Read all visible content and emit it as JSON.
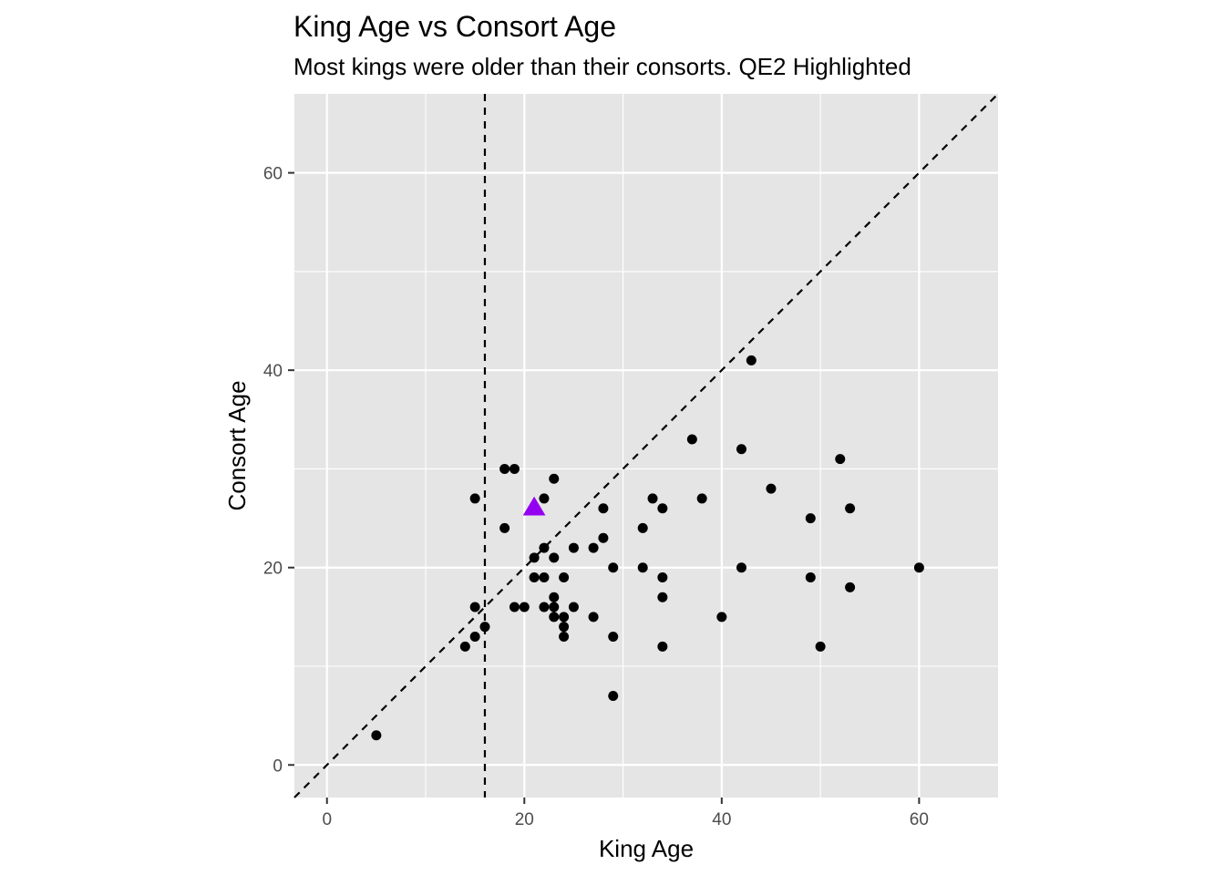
{
  "chart_data": {
    "type": "scatter",
    "title": "King Age vs Consort Age",
    "subtitle": "Most kings were older than their consorts. QE2 Highlighted",
    "xlabel": "King Age",
    "ylabel": "Consort Age",
    "xlim": [
      -3.3,
      68
    ],
    "ylim": [
      -3.3,
      68
    ],
    "x_ticks": [
      0,
      20,
      40,
      60
    ],
    "y_ticks": [
      0,
      20,
      40,
      60
    ],
    "x_minor": [
      10,
      30,
      50
    ],
    "y_minor": [
      10,
      30,
      50
    ],
    "grid": true,
    "reference_lines": [
      {
        "type": "vertical",
        "x": 16,
        "style": "dashed"
      },
      {
        "type": "identity",
        "slope": 1,
        "intercept": 0,
        "style": "dashed"
      }
    ],
    "series": [
      {
        "name": "Kings",
        "marker": "circle",
        "color": "#000000",
        "points": [
          [
            5,
            3
          ],
          [
            14,
            12
          ],
          [
            15,
            13
          ],
          [
            15,
            16
          ],
          [
            15,
            27
          ],
          [
            16,
            14
          ],
          [
            18,
            24
          ],
          [
            18,
            30
          ],
          [
            19,
            30
          ],
          [
            19,
            16
          ],
          [
            20,
            16
          ],
          [
            21,
            21
          ],
          [
            21,
            19
          ],
          [
            22,
            27
          ],
          [
            22,
            22
          ],
          [
            22,
            19
          ],
          [
            22,
            16
          ],
          [
            23,
            29
          ],
          [
            23,
            21
          ],
          [
            23,
            17
          ],
          [
            23,
            16
          ],
          [
            23,
            15
          ],
          [
            24,
            19
          ],
          [
            24,
            15
          ],
          [
            24,
            14
          ],
          [
            24,
            13
          ],
          [
            25,
            22
          ],
          [
            25,
            16
          ],
          [
            27,
            22
          ],
          [
            27,
            15
          ],
          [
            28,
            26
          ],
          [
            28,
            23
          ],
          [
            29,
            20
          ],
          [
            29,
            13
          ],
          [
            29,
            7
          ],
          [
            32,
            24
          ],
          [
            32,
            20
          ],
          [
            33,
            27
          ],
          [
            34,
            26
          ],
          [
            34,
            19
          ],
          [
            34,
            17
          ],
          [
            34,
            12
          ],
          [
            37,
            33
          ],
          [
            38,
            27
          ],
          [
            40,
            15
          ],
          [
            42,
            32
          ],
          [
            42,
            20
          ],
          [
            43,
            41
          ],
          [
            45,
            28
          ],
          [
            49,
            25
          ],
          [
            49,
            19
          ],
          [
            50,
            12
          ],
          [
            52,
            31
          ],
          [
            53,
            26
          ],
          [
            53,
            18
          ],
          [
            60,
            20
          ]
        ]
      },
      {
        "name": "QE2",
        "marker": "triangle",
        "color": "#9400F0",
        "points": [
          [
            21,
            26
          ]
        ]
      }
    ]
  }
}
